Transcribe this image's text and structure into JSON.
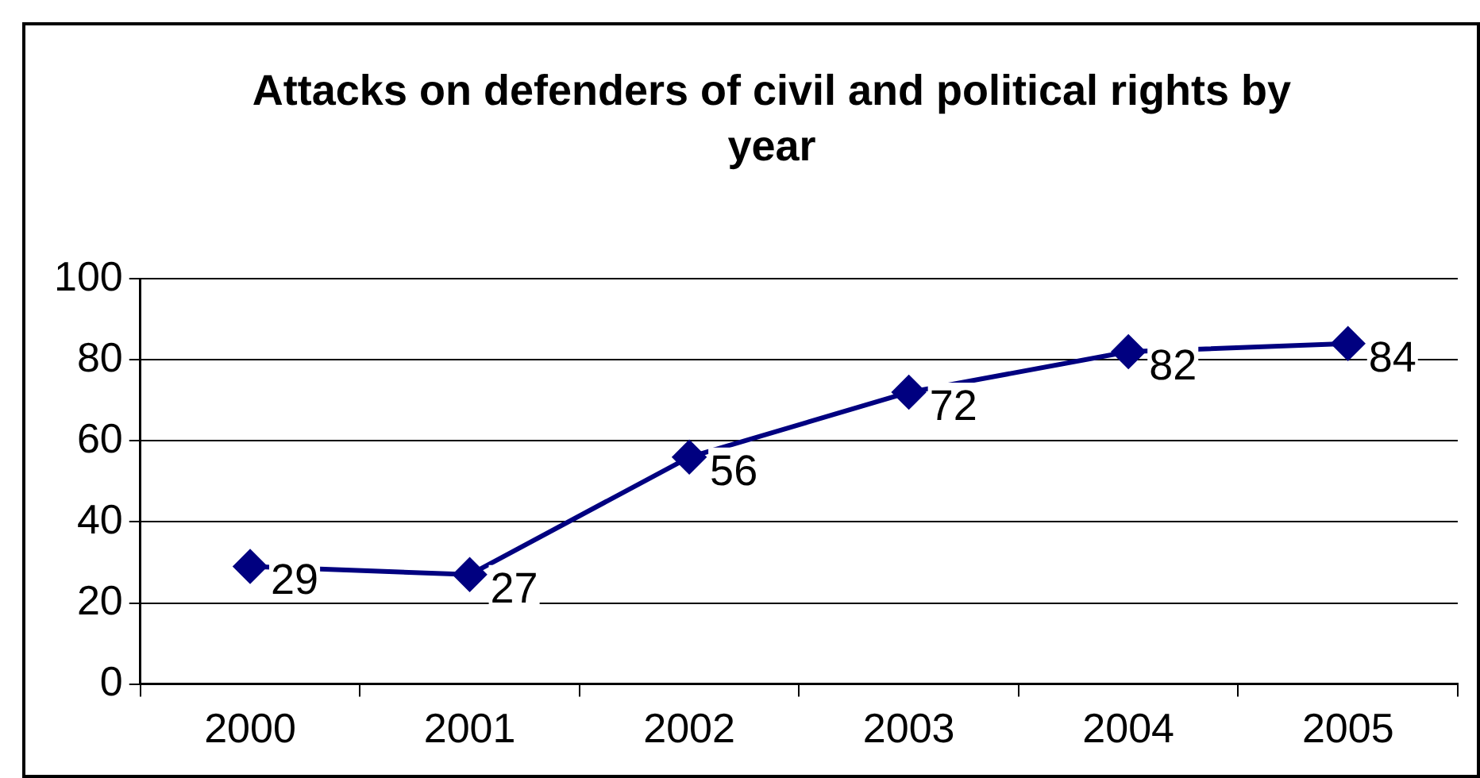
{
  "chart_data": {
    "type": "line",
    "title": "Attacks on defenders of civil and political rights by year",
    "categories": [
      "2000",
      "2001",
      "2002",
      "2003",
      "2004",
      "2005"
    ],
    "series": [
      {
        "color": "#000080",
        "values": [
          29,
          27,
          56,
          72,
          82,
          84
        ]
      }
    ],
    "ylim": [
      0,
      100
    ],
    "yticks": [
      0,
      20,
      40,
      60,
      80,
      100
    ],
    "grid": "y",
    "legend": false,
    "marker": "diamond",
    "line_style": "solid",
    "data_labels": true
  }
}
